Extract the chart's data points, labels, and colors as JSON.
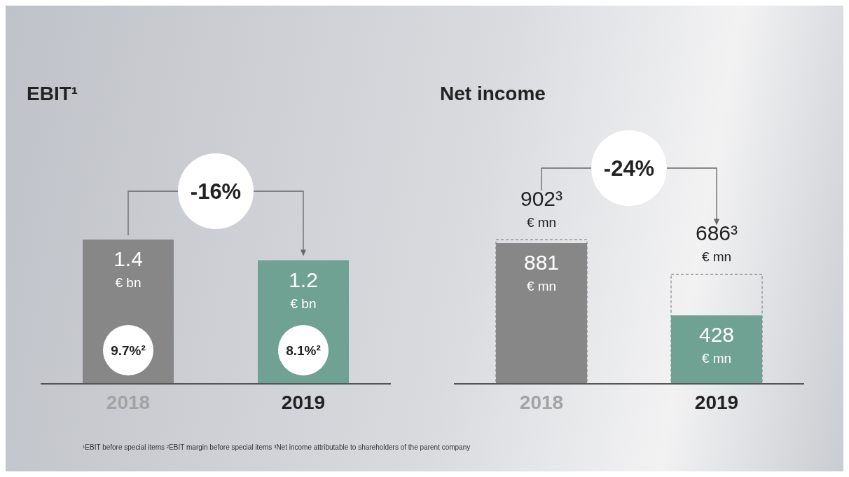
{
  "chart_data": [
    {
      "type": "bar",
      "title": "EBIT¹",
      "categories": [
        "2018",
        "2019"
      ],
      "values": [
        1.4,
        1.2
      ],
      "colors": [
        "#878787",
        "#6fa293"
      ],
      "value_labels": [
        "1.4\n€ bn",
        "1.2\n€ bn"
      ],
      "annotations": [
        "-16%",
        "9.7%²",
        "8.1%²",
        "¹EBIT before special items ²EBIT margin before special items ³Net income attributable to shareholders of the parent company"
      ]
    },
    {
      "type": "bar",
      "title": "Net income",
      "categories": [
        "2018",
        "2019"
      ],
      "series": [
        {
          "values": [
            902,
            686
          ],
          "color": "#707070",
          "line_style": "dashed",
          "value_labels": [
            "902³\n€ mn",
            "686³\n€ mn"
          ]
        },
        {
          "values": [
            881,
            428
          ],
          "colors": [
            "#878787",
            "#6fa293"
          ],
          "value_labels": [
            "881\n€ mn",
            "428\n€ mn"
          ]
        }
      ],
      "annotations": [
        "-24%"
      ]
    }
  ]
}
